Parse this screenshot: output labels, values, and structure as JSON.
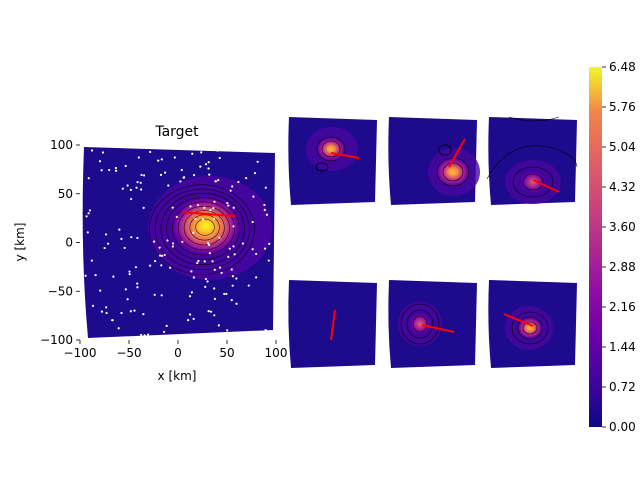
{
  "chart_data": [
    {
      "type": "heatmap",
      "title": "Target",
      "xlabel": "x [km]",
      "ylabel": "y [km]",
      "xlim": [
        -100,
        100
      ],
      "ylim": [
        -100,
        100
      ],
      "xticks": [
        "−100",
        "−50",
        "0",
        "50",
        "100"
      ],
      "yticks": [
        "−100",
        "−50",
        "0",
        "50",
        "100"
      ],
      "colormap": "plasma",
      "peak": {
        "x": 28,
        "y": 16,
        "value": 6.48
      },
      "fault_line": {
        "x1": 5,
        "y1": 31,
        "x2": 58,
        "y2": 27,
        "color": "#ff0000"
      },
      "station_count": 180
    },
    {
      "type": "heatmap",
      "panel": "prediction-1",
      "peak": {
        "x": 0,
        "y": 0,
        "value": 3.8
      },
      "fault_line": {
        "x1": 5,
        "y1": -2,
        "x2": 60,
        "y2": -12
      }
    },
    {
      "type": "heatmap",
      "panel": "prediction-2",
      "peak": {
        "x": 0,
        "y": 0,
        "value": 4.7
      },
      "fault_line": {
        "x1": 15,
        "y1": 5,
        "x2": 40,
        "y2": 62
      }
    },
    {
      "type": "heatmap",
      "panel": "prediction-3",
      "peak": {
        "x": 0,
        "y": -30,
        "value": 2.4
      },
      "fault_line": {
        "x1": 0,
        "y1": -30,
        "x2": 60,
        "y2": -60
      }
    },
    {
      "type": "heatmap",
      "panel": "prediction-4",
      "peak": null,
      "fault_line": {
        "x1": 5,
        "y1": 50,
        "x2": -5,
        "y2": -30
      }
    },
    {
      "type": "heatmap",
      "panel": "prediction-5",
      "peak": {
        "x": -40,
        "y": 0,
        "value": 2.0
      },
      "fault_line": {
        "x1": -35,
        "y1": 0,
        "x2": 35,
        "y2": -12
      }
    },
    {
      "type": "heatmap",
      "panel": "prediction-6",
      "peak": {
        "x": 10,
        "y": -5,
        "value": 3.6
      },
      "fault_line": {
        "x1": -60,
        "y1": 28,
        "x2": 10,
        "y2": 0
      }
    }
  ],
  "colorbar": {
    "colormap": "plasma",
    "ticks": [
      "0.00",
      "0.72",
      "1.44",
      "2.16",
      "2.88",
      "3.60",
      "4.32",
      "5.04",
      "5.76",
      "6.48"
    ],
    "min": 0.0,
    "max": 6.48
  },
  "colors": {
    "fault": "#ff0000",
    "station": "#ffffff"
  }
}
